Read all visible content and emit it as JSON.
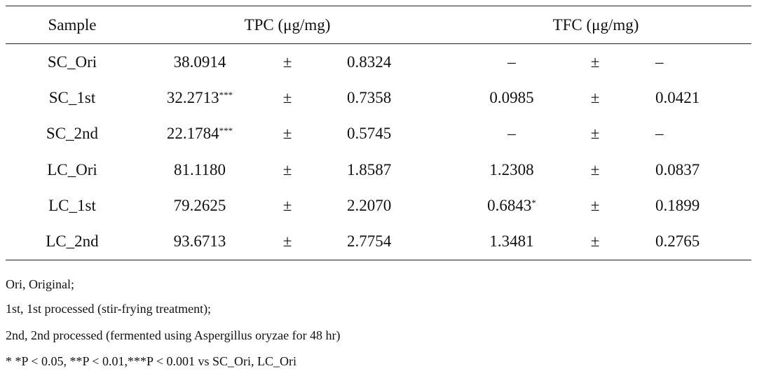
{
  "table": {
    "header": [
      "Sample",
      "TPC (μg/mg)",
      "TFC (μg/mg)"
    ],
    "rows": [
      {
        "sample": "SC_Ori",
        "tpc": {
          "mean": "38.0914",
          "pm": "±",
          "sd": "0.8324"
        },
        "tfc": {
          "mean": "–",
          "pm": "±",
          "sd": "–"
        }
      },
      {
        "sample": "SC_1st",
        "tpc": {
          "mean": "32.2713",
          "sig": "***",
          "pm": "±",
          "sd": "0.7358"
        },
        "tfc": {
          "mean": "0.0985",
          "pm": "±",
          "sd": "0.0421"
        }
      },
      {
        "sample": "SC_2nd",
        "tpc": {
          "mean": "22.1784",
          "sig": "***",
          "pm": "±",
          "sd": "0.5745"
        },
        "tfc": {
          "mean": "–",
          "pm": "±",
          "sd": "–"
        }
      },
      {
        "sample": "LC_Ori",
        "tpc": {
          "mean": "81.1180",
          "pm": "±",
          "sd": "1.8587"
        },
        "tfc": {
          "mean": "1.2308",
          "pm": "±",
          "sd": "0.0837"
        }
      },
      {
        "sample": "LC_1st",
        "tpc": {
          "mean": "79.2625",
          "pm": "±",
          "sd": "2.2070"
        },
        "tfc": {
          "mean": "0.6843",
          "sig": "*",
          "pm": "±",
          "sd": "0.1899"
        }
      },
      {
        "sample": "LC_2nd",
        "tpc": {
          "mean": "93.6713",
          "pm": "±",
          "sd": "2.7754"
        },
        "tfc": {
          "mean": "1.3481",
          "pm": "±",
          "sd": "0.2765"
        }
      }
    ]
  },
  "notes": [
    "Ori, Original;",
    "1st, 1st processed (stir-frying treatment);",
    "2nd, 2nd processed (fermented using Aspergillus oryzae for 48 hr)",
    "* *P < 0.05, **P < 0.01,***P < 0.001 vs SC_Ori, LC_Ori"
  ]
}
